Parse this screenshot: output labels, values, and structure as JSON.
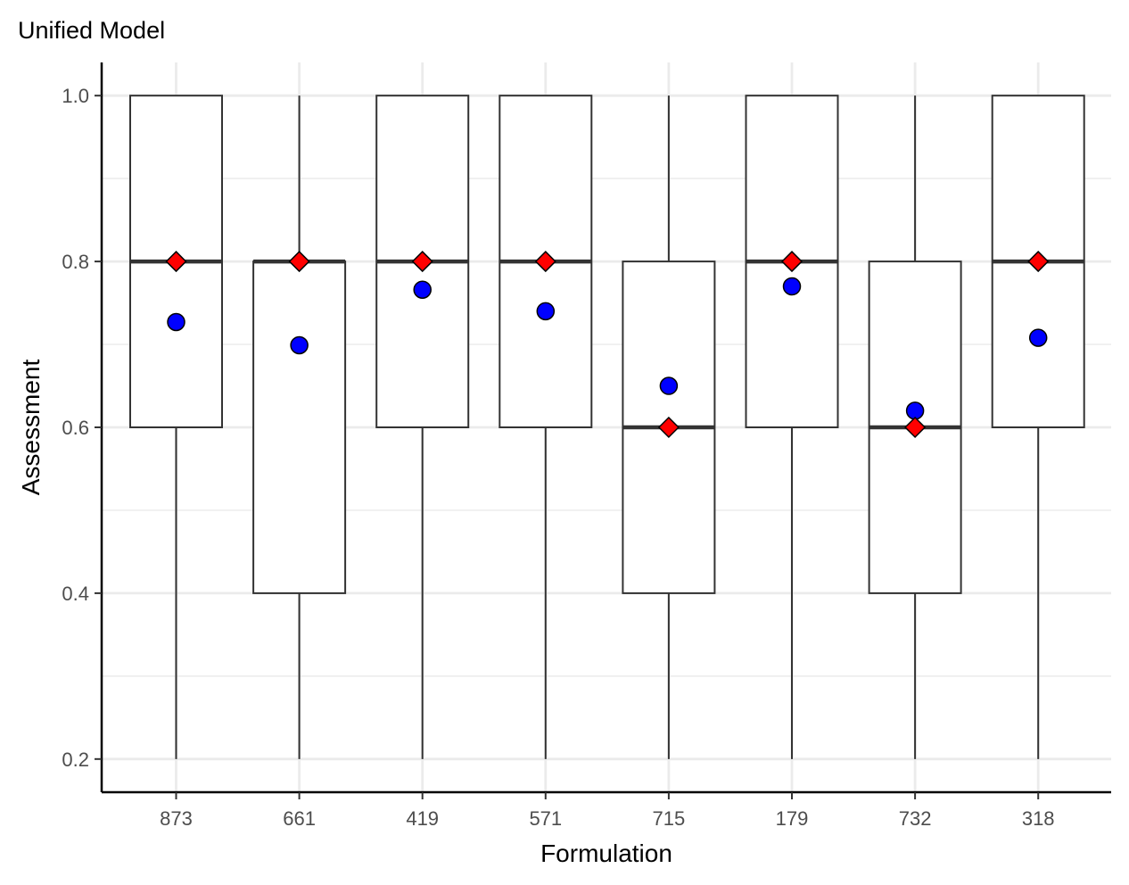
{
  "chart_data": {
    "type": "box",
    "title": "Unified Model",
    "xlabel": "Formulation",
    "ylabel": "Assessment",
    "ylim": [
      0.16,
      1.04
    ],
    "yticks": [
      0.2,
      0.4,
      0.6,
      0.8,
      1.0
    ],
    "ytick_labels": [
      "0.2",
      "0.4",
      "0.6",
      "0.8",
      "1.0"
    ],
    "grid": true,
    "categories": [
      "873",
      "661",
      "419",
      "571",
      "715",
      "179",
      "732",
      "318"
    ],
    "boxes": [
      {
        "category": "873",
        "whisker_low": 0.2,
        "q1": 0.6,
        "median": 0.8,
        "q3": 1.0,
        "whisker_high": 1.0,
        "mean": 0.727
      },
      {
        "category": "661",
        "whisker_low": 0.2,
        "q1": 0.4,
        "median": 0.8,
        "q3": 0.8,
        "whisker_high": 1.0,
        "mean": 0.699
      },
      {
        "category": "419",
        "whisker_low": 0.2,
        "q1": 0.6,
        "median": 0.8,
        "q3": 1.0,
        "whisker_high": 1.0,
        "mean": 0.766
      },
      {
        "category": "571",
        "whisker_low": 0.2,
        "q1": 0.6,
        "median": 0.8,
        "q3": 1.0,
        "whisker_high": 1.0,
        "mean": 0.74
      },
      {
        "category": "715",
        "whisker_low": 0.2,
        "q1": 0.4,
        "median": 0.6,
        "q3": 0.8,
        "whisker_high": 1.0,
        "mean": 0.65
      },
      {
        "category": "179",
        "whisker_low": 0.2,
        "q1": 0.6,
        "median": 0.8,
        "q3": 1.0,
        "whisker_high": 1.0,
        "mean": 0.77
      },
      {
        "category": "732",
        "whisker_low": 0.2,
        "q1": 0.4,
        "median": 0.6,
        "q3": 0.8,
        "whisker_high": 1.0,
        "mean": 0.62
      },
      {
        "category": "318",
        "whisker_low": 0.2,
        "q1": 0.6,
        "median": 0.8,
        "q3": 1.0,
        "whisker_high": 1.0,
        "mean": 0.708
      }
    ],
    "colors": {
      "mean_point": "#0000ff",
      "median_marker": "#ff0000",
      "box_line": "#333333",
      "grid": "#ebebeb",
      "axis": "#000000"
    }
  }
}
